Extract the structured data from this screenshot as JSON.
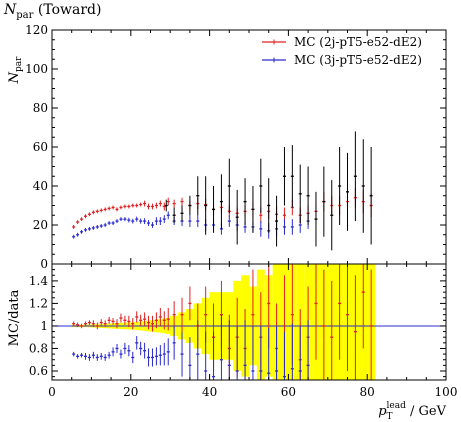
{
  "chart_data": {
    "title_main": "N",
    "title_sub": "par",
    "title_suffix": " (Toward)",
    "type": "scatter",
    "xlabel_main": "p",
    "xlabel_sub": "T",
    "xlabel_sup": "lead",
    "xlabel_suffix": " / GeV",
    "upper": {
      "ylabel_main": "N",
      "ylabel_sub": "par",
      "xlim": [
        0,
        100
      ],
      "ylim": [
        0,
        120
      ],
      "yticks": [
        "0",
        "20",
        "40",
        "60",
        "80",
        "100",
        "120"
      ],
      "yticks_values": [
        0,
        20,
        40,
        60,
        80,
        100,
        120
      ]
    },
    "lower": {
      "ylabel": "MC/data",
      "ylim": [
        0.52,
        1.55
      ],
      "yticks": [
        "0.6",
        "0.8",
        "1",
        "1.2",
        "1.4"
      ],
      "yticks_values": [
        0.6,
        0.8,
        1.0,
        1.2,
        1.4
      ]
    },
    "xticks": [
      "0",
      "20",
      "40",
      "60",
      "80",
      "100"
    ],
    "xticks_values": [
      0,
      20,
      40,
      60,
      80,
      100
    ],
    "legend": {
      "placement": "top-right",
      "entries": [
        "MC (2j-pT5-e52-dE2)",
        "MC (3j-pT5-e52-dE2)"
      ]
    },
    "colors": {
      "red": "#e02020",
      "blue": "#2a2ad0",
      "band": "#ffff00",
      "data": "#000000"
    },
    "series": [
      {
        "name": "MC (2j-pT5-e52-dE2)",
        "color": "red",
        "x": [
          5.5,
          6.5,
          7.5,
          8.5,
          9.5,
          10.5,
          11.5,
          12.5,
          13.5,
          14.5,
          15.5,
          16.5,
          17.5,
          18.5,
          19.5,
          20.5,
          21.5,
          22.5,
          23.5,
          24.5,
          25.5,
          26.5,
          27.5,
          28.5,
          29.5,
          31,
          33,
          35,
          37,
          39,
          41,
          43,
          45,
          47,
          49,
          51,
          53,
          55,
          57,
          59,
          61,
          63,
          65,
          67,
          69,
          71,
          73,
          75,
          77,
          79,
          81
        ],
        "y": [
          19,
          21.5,
          23,
          24.5,
          25.5,
          26.5,
          27,
          27.5,
          28,
          28.5,
          29,
          28,
          29,
          29.5,
          29.5,
          30,
          30,
          30.5,
          31,
          29.5,
          29.5,
          30,
          31,
          29.5,
          32,
          31,
          32,
          30,
          31,
          30.5,
          28,
          29,
          27,
          26,
          27,
          28,
          25,
          27,
          25.5,
          25,
          29,
          25,
          26,
          27,
          32,
          30,
          30,
          32,
          34,
          32,
          30
        ],
        "err": [
          1,
          1,
          1,
          1,
          1,
          1,
          1,
          1,
          1,
          1,
          1,
          1,
          1,
          1,
          1,
          1,
          1,
          1,
          1.5,
          1.5,
          1.5,
          1.5,
          1.5,
          2,
          2,
          2,
          2,
          2.5,
          3,
          3,
          3,
          3,
          3,
          3,
          3,
          4,
          4,
          4,
          4,
          4,
          4,
          4,
          4,
          4,
          5,
          5,
          5,
          5,
          5,
          6,
          6
        ]
      },
      {
        "name": "MC (3j-pT5-e52-dE2)",
        "color": "blue",
        "x": [
          5.5,
          6.5,
          7.5,
          8.5,
          9.5,
          10.5,
          11.5,
          12.5,
          13.5,
          14.5,
          15.5,
          16.5,
          17.5,
          18.5,
          19.5,
          20.5,
          21.5,
          22.5,
          23.5,
          24.5,
          25.5,
          26.5,
          27.5,
          28.5,
          29.5,
          31,
          33,
          35,
          37,
          39,
          41,
          43,
          45,
          47,
          49,
          51,
          53,
          55,
          57,
          59,
          61,
          63,
          65
        ],
        "y": [
          14,
          15,
          16.5,
          17.5,
          18,
          18.5,
          19,
          19.5,
          20,
          21,
          21,
          22,
          23,
          23,
          22.5,
          22,
          23,
          22,
          22,
          21,
          20,
          22,
          22,
          23,
          25,
          22,
          22,
          22,
          22,
          20,
          20,
          18,
          22,
          20,
          19,
          19,
          18,
          17,
          18,
          19,
          19,
          20,
          22
        ],
        "err": [
          1,
          1,
          1,
          1,
          1,
          1,
          1,
          1,
          1,
          1,
          1,
          1,
          1,
          1,
          1.2,
          1.2,
          1.3,
          1.3,
          1.5,
          1.5,
          1.5,
          2,
          2,
          2,
          2,
          2,
          2.5,
          3,
          3,
          3,
          3,
          3,
          3,
          3,
          3,
          3,
          4,
          4,
          4,
          4,
          4,
          4,
          4
        ]
      },
      {
        "name": "",
        "color": "data",
        "x": [
          29,
          31,
          33,
          35,
          37,
          39,
          41,
          43,
          45,
          47,
          49,
          51,
          53,
          55,
          57,
          59,
          61,
          63,
          65,
          67,
          69,
          71,
          73,
          75,
          77,
          79,
          81
        ],
        "y": [
          30,
          25,
          26,
          30,
          35,
          30,
          28,
          32,
          40,
          24,
          32,
          28,
          40,
          30,
          22,
          45,
          45,
          36,
          35,
          23,
          32,
          25,
          40,
          37,
          45,
          40,
          35
        ],
        "err": [
          3,
          4,
          4,
          5,
          10,
          15,
          12,
          14,
          14,
          14,
          12,
          12,
          14,
          14,
          13,
          15,
          16,
          15,
          15,
          14,
          18,
          18,
          20,
          20,
          23,
          24,
          25
        ]
      }
    ],
    "ratio": {
      "red": {
        "x": [
          5.5,
          6.5,
          7.5,
          8.5,
          9.5,
          10.5,
          11.5,
          12.5,
          13.5,
          14.5,
          15.5,
          16.5,
          17.5,
          18.5,
          19.5,
          20.5,
          21.5,
          22.5,
          23.5,
          24.5,
          25.5,
          26.5,
          27.5,
          28.5,
          29.5,
          31,
          33,
          35,
          37,
          39,
          41,
          43,
          45,
          47,
          49,
          51,
          53,
          55,
          57,
          59,
          61,
          63,
          65,
          67,
          69,
          71,
          73,
          75,
          77,
          79,
          81
        ],
        "y": [
          1.02,
          1.01,
          1.0,
          1.02,
          1.03,
          1.02,
          1.0,
          1.03,
          1.02,
          1.05,
          1.04,
          1.02,
          1.07,
          1.05,
          1.04,
          1.02,
          1.08,
          1.05,
          1.06,
          1.03,
          1.02,
          1.05,
          1.08,
          1.05,
          1.06,
          1.1,
          1.1,
          1.2,
          1.0,
          1.1,
          0.9,
          1.1,
          0.8,
          0.9,
          0.8,
          1.1,
          0.9,
          1.2,
          0.8,
          1.0,
          1.1,
          0.7,
          0.9,
          1.2,
          1.0,
          0.9,
          1.2,
          1.1,
          0.95,
          1.3,
          1.0
        ],
        "err": [
          0.02,
          0.02,
          0.02,
          0.02,
          0.02,
          0.03,
          0.03,
          0.03,
          0.03,
          0.03,
          0.03,
          0.04,
          0.04,
          0.04,
          0.05,
          0.05,
          0.05,
          0.05,
          0.06,
          0.06,
          0.07,
          0.07,
          0.08,
          0.08,
          0.1,
          0.12,
          0.15,
          0.15,
          0.2,
          0.25,
          0.3,
          0.3,
          0.3,
          0.35,
          0.35,
          0.4,
          0.4,
          0.4,
          0.4,
          0.45,
          0.45,
          0.45,
          0.45,
          0.5,
          0.5,
          0.5,
          0.5,
          0.5,
          0.5,
          0.5,
          0.5
        ]
      },
      "blue": {
        "x": [
          5.5,
          6.5,
          7.5,
          8.5,
          9.5,
          10.5,
          11.5,
          12.5,
          13.5,
          14.5,
          15.5,
          16.5,
          17.5,
          18.5,
          19.5,
          20.5,
          21.5,
          22.5,
          23.5,
          24.5,
          25.5,
          26.5,
          27.5,
          28.5,
          29.5,
          31,
          33,
          35,
          37,
          39,
          41,
          43,
          45,
          47,
          49,
          51,
          53,
          55,
          57,
          59,
          61,
          63,
          65
        ],
        "y": [
          0.75,
          0.73,
          0.74,
          0.73,
          0.72,
          0.74,
          0.72,
          0.73,
          0.72,
          0.74,
          0.77,
          0.8,
          0.75,
          0.8,
          0.78,
          0.72,
          0.85,
          0.8,
          0.78,
          0.72,
          0.72,
          0.73,
          0.74,
          0.75,
          0.77,
          0.85,
          0.75,
          0.65,
          0.75,
          0.6,
          0.55,
          0.7,
          0.65,
          0.6,
          0.65,
          0.6,
          0.6,
          0.58,
          0.6,
          0.55,
          0.62,
          0.6,
          0.65
        ],
        "err": [
          0.02,
          0.02,
          0.02,
          0.03,
          0.03,
          0.03,
          0.03,
          0.03,
          0.03,
          0.03,
          0.04,
          0.04,
          0.04,
          0.05,
          0.05,
          0.05,
          0.06,
          0.06,
          0.07,
          0.08,
          0.08,
          0.08,
          0.09,
          0.1,
          0.12,
          0.15,
          0.2,
          0.25,
          0.3,
          0.35,
          0.4,
          0.4,
          0.4,
          0.4,
          0.4,
          0.4,
          0.4,
          0.4,
          0.4,
          0.4,
          0.4,
          0.4,
          0.4
        ]
      },
      "band": {
        "x": [
          5.5,
          6.5,
          7.5,
          8.5,
          9.5,
          10.5,
          11.5,
          12.5,
          13.5,
          14.5,
          15.5,
          16.5,
          17.5,
          18.5,
          19.5,
          20.5,
          21.5,
          22.5,
          23.5,
          24.5,
          25.5,
          26.5,
          27.5,
          28.5,
          29.5,
          31,
          33,
          35,
          37,
          39,
          41,
          43,
          45,
          47,
          49,
          51,
          53,
          55,
          57,
          59,
          61,
          63,
          65,
          67,
          69,
          71,
          73,
          75,
          77,
          79,
          81
        ],
        "half": [
          0.01,
          0.01,
          0.01,
          0.01,
          0.012,
          0.014,
          0.016,
          0.018,
          0.02,
          0.022,
          0.024,
          0.026,
          0.028,
          0.03,
          0.032,
          0.034,
          0.036,
          0.04,
          0.044,
          0.048,
          0.052,
          0.056,
          0.06,
          0.065,
          0.07,
          0.09,
          0.12,
          0.15,
          0.2,
          0.25,
          0.3,
          0.3,
          0.3,
          0.4,
          0.45,
          0.35,
          0.5,
          0.45,
          0.6,
          0.6,
          0.6,
          0.6,
          0.6,
          0.6,
          0.6,
          0.6,
          0.6,
          0.6,
          0.6,
          0.6,
          0.6
        ]
      }
    }
  }
}
